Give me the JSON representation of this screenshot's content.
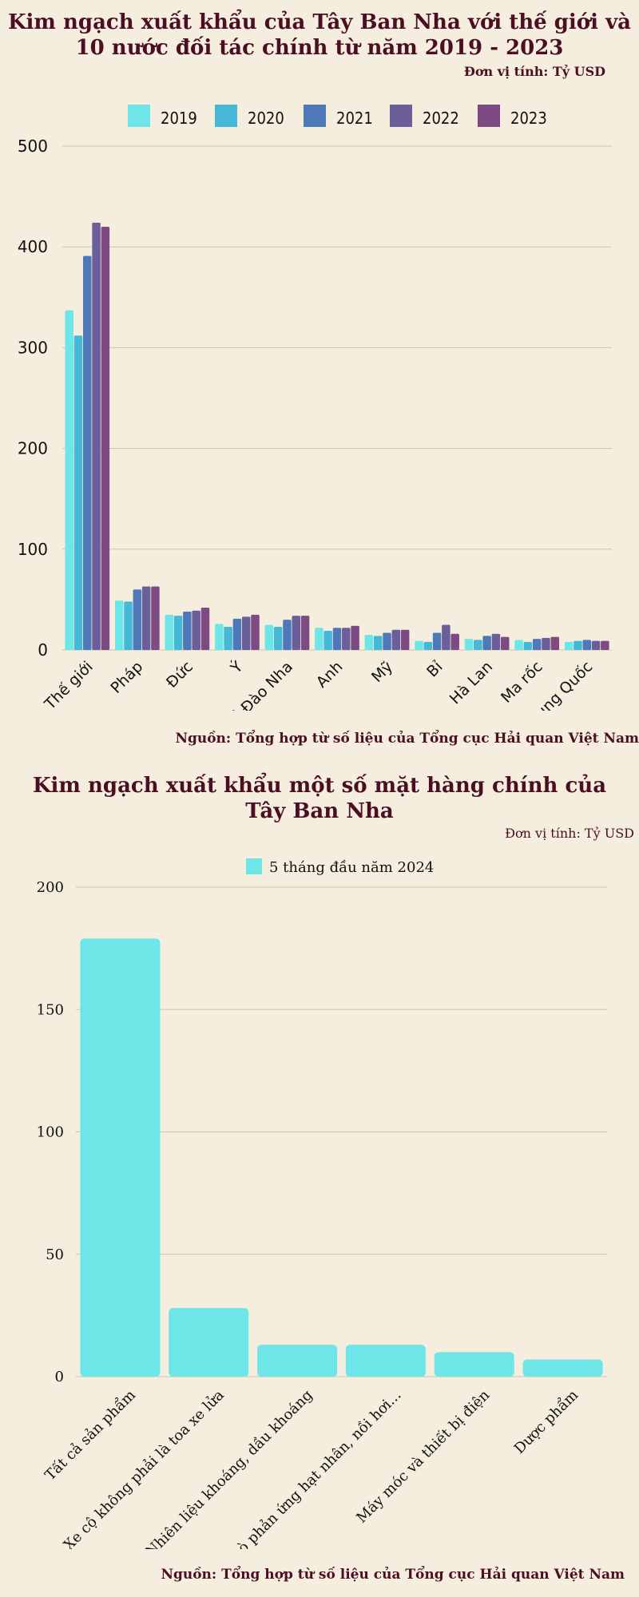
{
  "chart1": {
    "title_line1": "Kim ngạch xuất khẩu của Tây Ban Nha với thế giới và",
    "title_line2": "10 nước đối tác chính từ năm 2019 - 2023",
    "unit": "Đơn vị tính: Tỷ USD",
    "source": "Nguồn: Tổng hợp từ số liệu của Tổng cục Hải quan Việt Nam"
  },
  "chart2": {
    "title_line1": "Kim ngạch xuất khẩu một số mặt hàng chính của",
    "title_line2": "Tây Ban Nha",
    "unit": "Đơn vị tính: Tỷ  USD",
    "source": "Nguồn: Tổng hợp từ số liệu của Tổng cục Hải quan Việt Nam"
  },
  "chart_data": [
    {
      "type": "bar",
      "title": "Kim ngạch xuất khẩu của Tây Ban Nha với thế giới và 10 nước đối tác chính từ năm 2019 - 2023",
      "categories": [
        "Thế giới",
        "Pháp",
        "Đức",
        "Ý",
        "Bồ Đào Nha",
        "Anh",
        "Mỹ",
        "Bỉ",
        "Hà Lan",
        "Ma rốc",
        "Trung Quốc"
      ],
      "series": [
        {
          "name": "2019",
          "color": "#6ee6e8",
          "values": [
            337,
            49,
            35,
            26,
            25,
            22,
            15,
            9,
            11,
            10,
            8
          ]
        },
        {
          "name": "2020",
          "color": "#45b8d8",
          "values": [
            312,
            48,
            34,
            23,
            23,
            19,
            14,
            8,
            10,
            8,
            9
          ]
        },
        {
          "name": "2021",
          "color": "#4f78b8",
          "values": [
            391,
            60,
            38,
            31,
            30,
            22,
            17,
            17,
            14,
            11,
            10
          ]
        },
        {
          "name": "2022",
          "color": "#6a5f9a",
          "values": [
            424,
            63,
            39,
            33,
            34,
            22,
            20,
            25,
            16,
            12,
            9
          ]
        },
        {
          "name": "2023",
          "color": "#7e4a82",
          "values": [
            420,
            63,
            42,
            35,
            34,
            24,
            20,
            16,
            13,
            13,
            9
          ]
        }
      ],
      "ylim": [
        0,
        500
      ],
      "yticks": [
        0,
        100,
        200,
        300,
        400,
        500
      ],
      "grid": true,
      "legend": "top-center"
    },
    {
      "type": "bar",
      "title": "Kim ngạch xuất khẩu một số mặt hàng chính của Tây Ban Nha",
      "categories": [
        "Tất cả sản phẩm",
        "Xe cộ không phải là toa xe lửa",
        "Nhiên liệu khoáng, dầu khoáng",
        "Lò phản ứng hạt nhân, nồi hơi...",
        "Máy móc và thiết bị điện",
        "Dược phẩm"
      ],
      "series": [
        {
          "name": "5 tháng đầu năm 2024",
          "color": "#6ee6e8",
          "values": [
            179,
            28,
            13,
            13,
            10,
            7
          ]
        }
      ],
      "ylim": [
        0,
        200
      ],
      "yticks": [
        0,
        50,
        100,
        150,
        200
      ],
      "grid": true,
      "legend": "top-center"
    }
  ]
}
